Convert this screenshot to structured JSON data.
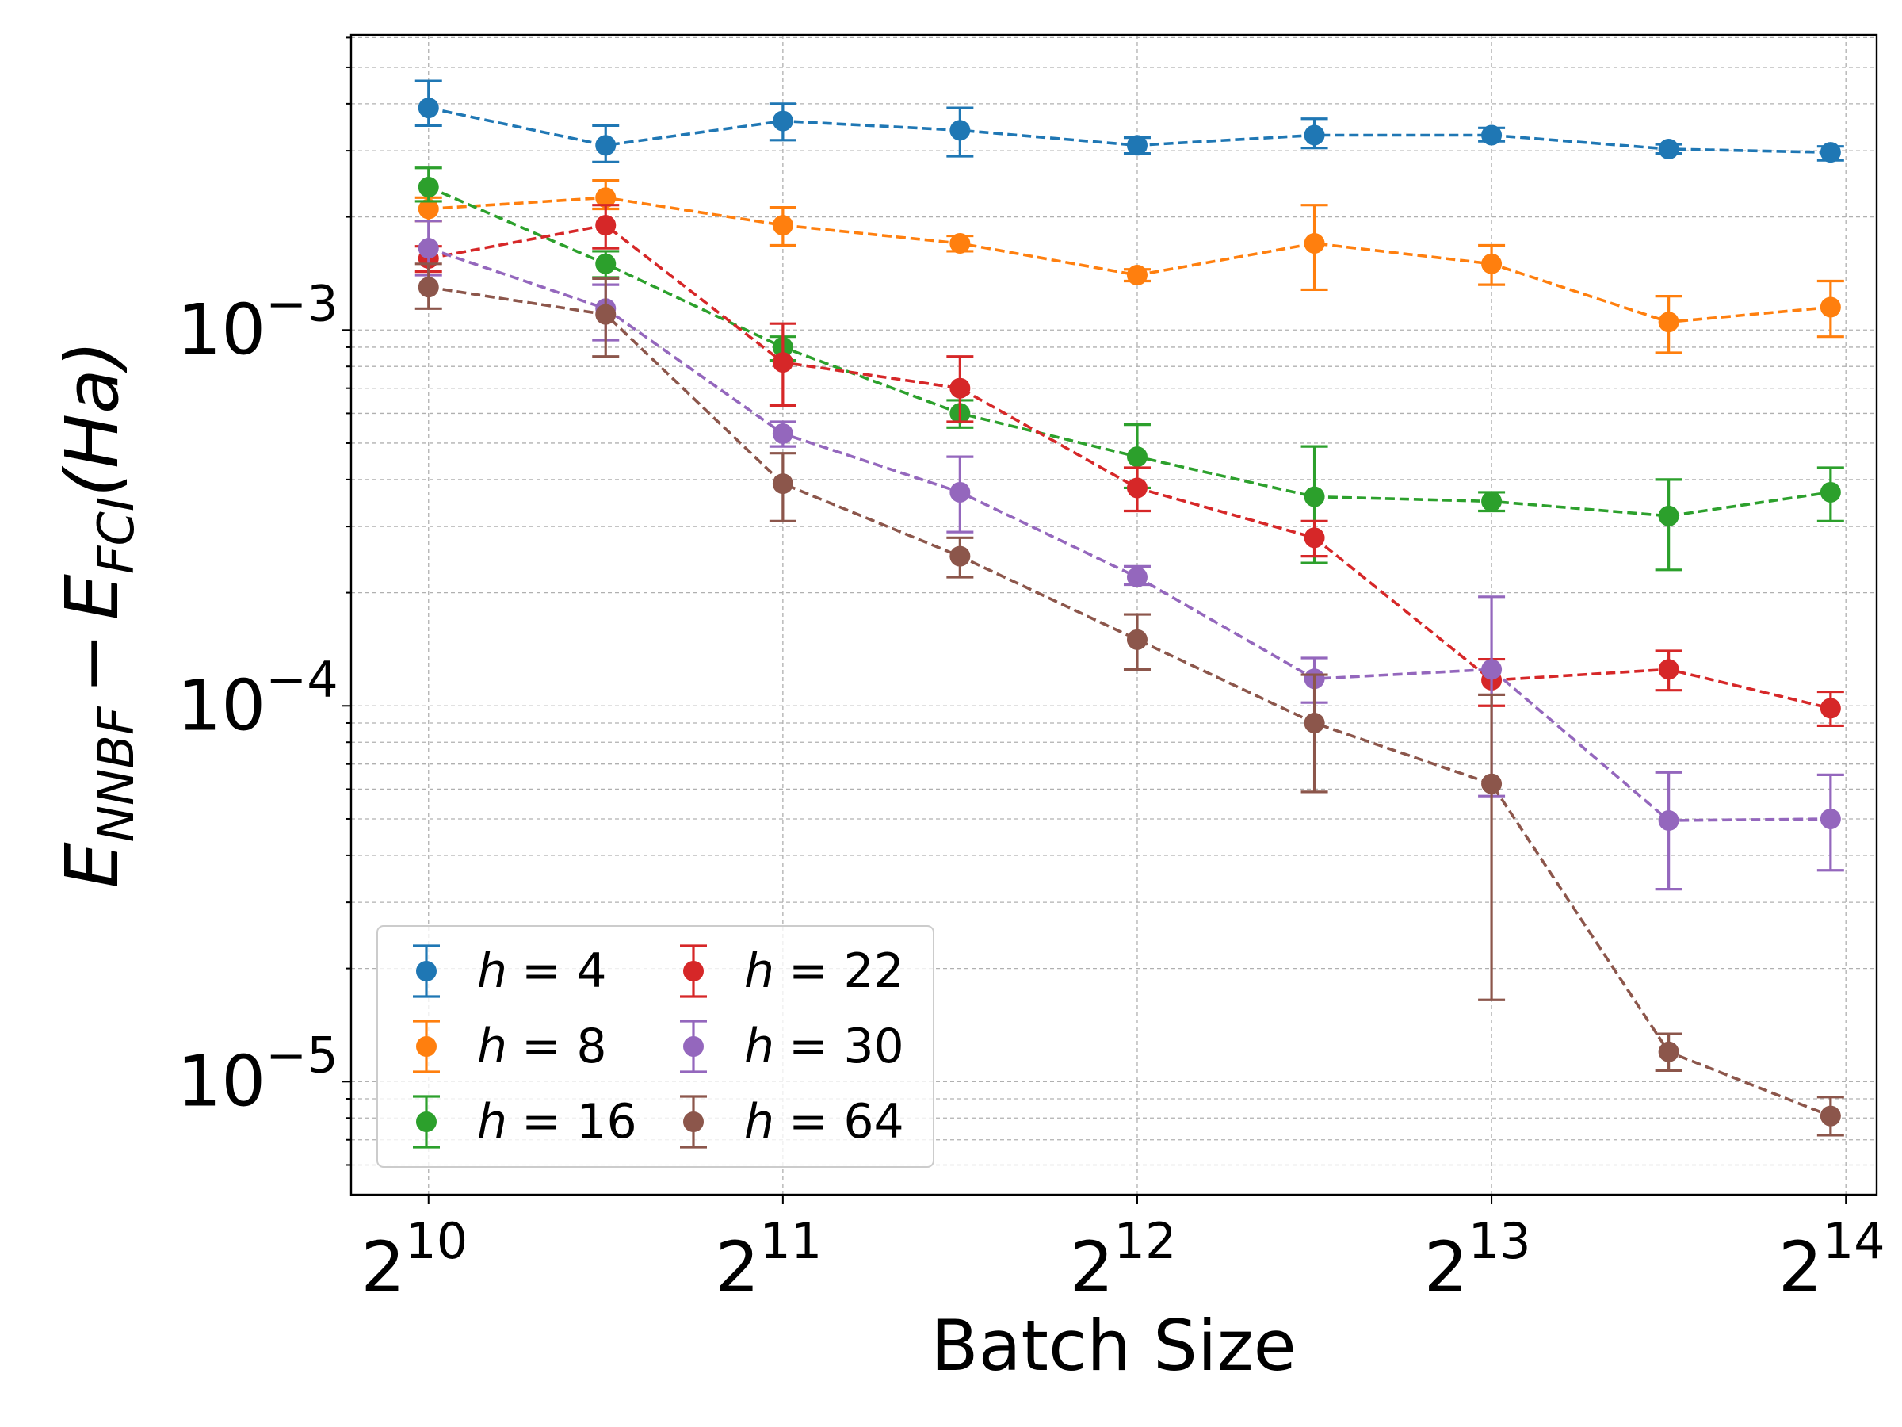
{
  "chart_data": {
    "type": "line",
    "title": "",
    "xlabel": "Batch Size",
    "ylabel_main": "E",
    "ylabel_sub1": "NNBF",
    "ylabel_minus": "−",
    "ylabel_sub2": "FCI",
    "ylabel_unit": "(Ha)",
    "x_scale": "log2",
    "y_scale": "log10",
    "xlim": [
      880,
      17400
    ],
    "ylim": [
      5e-06,
      0.0061
    ],
    "grid": true,
    "legend_position": "lower-left",
    "legend_columns": 2,
    "x_ticks": [
      {
        "value": 1024,
        "base": "2",
        "exp": "10"
      },
      {
        "value": 2048,
        "base": "2",
        "exp": "11"
      },
      {
        "value": 4096,
        "base": "2",
        "exp": "12"
      },
      {
        "value": 8192,
        "base": "2",
        "exp": "13"
      },
      {
        "value": 16384,
        "base": "2",
        "exp": "14"
      }
    ],
    "y_ticks": [
      {
        "value": 1e-05,
        "base": "10",
        "exp": "−5"
      },
      {
        "value": 0.0001,
        "base": "10",
        "exp": "−4"
      },
      {
        "value": 0.001,
        "base": "10",
        "exp": "−3"
      }
    ],
    "x": [
      1024,
      1448,
      2048,
      2896,
      4096,
      5793,
      8192,
      11585,
      15900
    ],
    "series": [
      {
        "name": "h = 4",
        "legend_var": "h",
        "legend_value": "= 4",
        "color": "#1f77b4",
        "values": [
          0.0039,
          0.0031,
          0.0036,
          0.0034,
          0.0031,
          0.0033,
          0.0033,
          0.00303,
          0.00297
        ],
        "err_low": [
          0.0035,
          0.0028,
          0.0032,
          0.0029,
          0.00295,
          0.00305,
          0.00318,
          0.00295,
          0.00283
        ],
        "err_high": [
          0.0046,
          0.0035,
          0.004,
          0.0039,
          0.00325,
          0.00365,
          0.00345,
          0.00312,
          0.00308
        ]
      },
      {
        "name": "h = 8",
        "legend_var": "h",
        "legend_value": "= 8",
        "color": "#ff7f0e",
        "values": [
          0.0021,
          0.00225,
          0.0019,
          0.0017,
          0.0014,
          0.0017,
          0.0015,
          0.00105,
          0.00115
        ],
        "err_low": [
          0.00195,
          0.0021,
          0.00168,
          0.00162,
          0.00135,
          0.00128,
          0.00132,
          0.00087,
          0.00096
        ],
        "err_high": [
          0.00225,
          0.0025,
          0.00212,
          0.00178,
          0.00145,
          0.00215,
          0.00168,
          0.00123,
          0.00135
        ]
      },
      {
        "name": "h = 16",
        "legend_var": "h",
        "legend_value": "= 16",
        "color": "#2ca02c",
        "values": [
          0.0024,
          0.0015,
          0.0009,
          0.0006,
          0.00046,
          0.00036,
          0.00035,
          0.00032,
          0.00037
        ],
        "err_low": [
          0.0022,
          0.00138,
          0.00083,
          0.00055,
          0.00038,
          0.00024,
          0.00033,
          0.00023,
          0.00031
        ],
        "err_high": [
          0.0027,
          0.00162,
          0.00096,
          0.00065,
          0.00056,
          0.00049,
          0.00037,
          0.0004,
          0.00043
        ]
      },
      {
        "name": "h = 22",
        "legend_var": "h",
        "legend_value": "= 22",
        "color": "#d62728",
        "values": [
          0.00155,
          0.0019,
          0.00082,
          0.0007,
          0.00038,
          0.00028,
          0.000117,
          0.000125,
          9.85e-05
        ],
        "err_low": [
          0.00143,
          0.00165,
          0.00063,
          0.00057,
          0.00033,
          0.00025,
          0.0001,
          0.00011,
          8.85e-05
        ],
        "err_high": [
          0.00167,
          0.00215,
          0.00104,
          0.00085,
          0.00043,
          0.00031,
          0.000133,
          0.00014,
          0.000109
        ]
      },
      {
        "name": "h = 30",
        "legend_var": "h",
        "legend_value": "= 30",
        "color": "#9467bd",
        "values": [
          0.00165,
          0.00114,
          0.00053,
          0.00037,
          0.00022,
          0.000118,
          0.000125,
          4.95e-05,
          5e-05
        ],
        "err_low": [
          0.0014,
          0.00094,
          0.00049,
          0.00029,
          0.00021,
          0.000102,
          5.75e-05,
          3.25e-05,
          3.65e-05
        ],
        "err_high": [
          0.00195,
          0.00132,
          0.00057,
          0.00046,
          0.000235,
          0.000134,
          0.000195,
          6.65e-05,
          6.55e-05
        ]
      },
      {
        "name": "h = 64",
        "legend_var": "h",
        "legend_value": "= 64",
        "color": "#8c564b",
        "values": [
          0.0013,
          0.0011,
          0.00039,
          0.00025,
          0.00015,
          9e-05,
          6.2e-05,
          1.2e-05,
          8.1e-06
        ],
        "err_low": [
          0.00114,
          0.00085,
          0.00031,
          0.00022,
          0.000125,
          5.9e-05,
          1.65e-05,
          1.07e-05,
          7.2e-06
        ],
        "err_high": [
          0.0015,
          0.00137,
          0.00047,
          0.00028,
          0.000175,
          0.000121,
          0.000107,
          1.34e-05,
          9.1e-06
        ]
      }
    ]
  }
}
